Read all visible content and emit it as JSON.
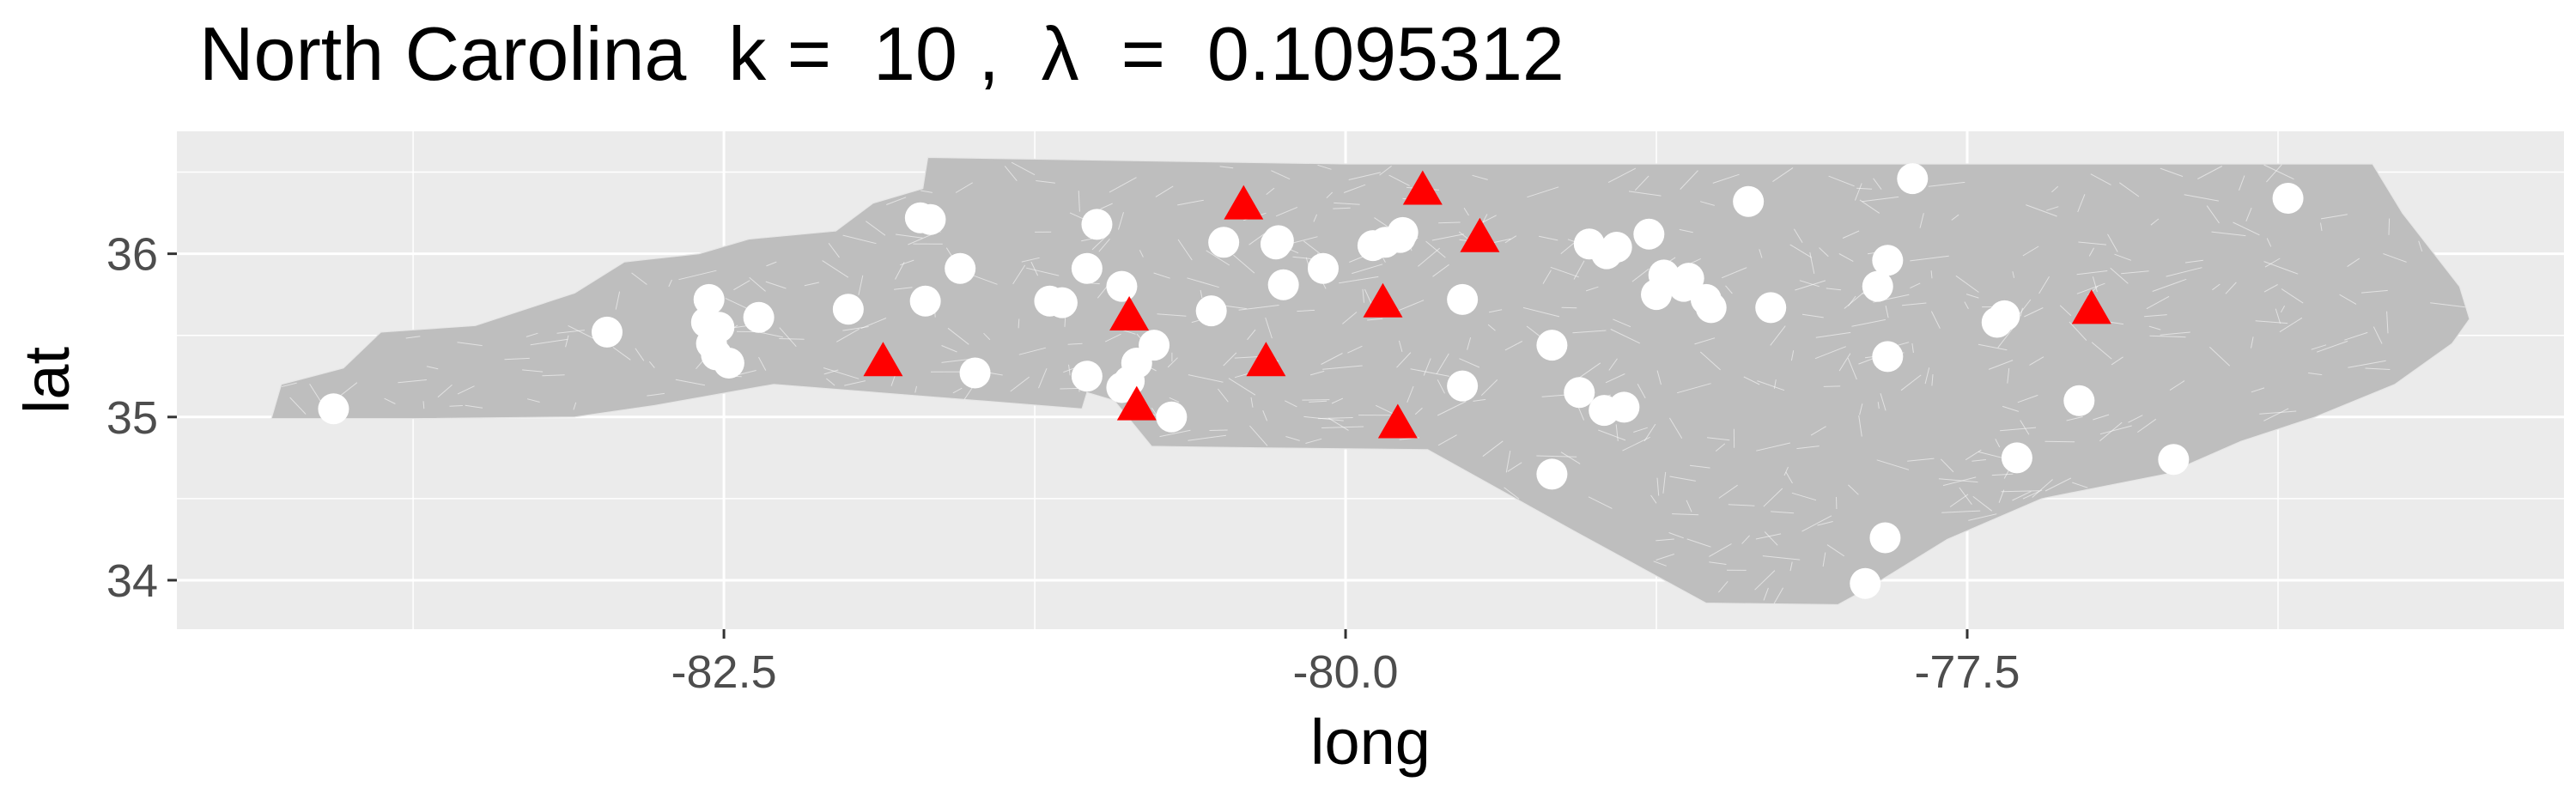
{
  "chart_data": {
    "type": "scatter",
    "title": "North Carolina  k =  10 ,  λ  =  0.1095312",
    "xlabel": "long",
    "ylabel": "lat",
    "xlim": [
      -84.7,
      -75.1
    ],
    "ylim": [
      33.7,
      36.75
    ],
    "x_ticks": [
      -82.5,
      -80.0,
      -77.5
    ],
    "x_tick_labels": [
      "-82.5",
      "-80.0",
      "-77.5"
    ],
    "y_ticks": [
      34,
      35,
      36
    ],
    "y_tick_labels": [
      "34",
      "35",
      "36"
    ],
    "grid": true,
    "legend": "none",
    "colors": {
      "panel": "#ebebeb",
      "grid": "#ffffff",
      "state_fill": "#bebebe",
      "boundary_lines": "#ffffff",
      "points": "#ffffff",
      "centers": "#ff0000"
    },
    "series": [
      {
        "marker": "circle",
        "color": "#ffffff",
        "x": [
          -84.07,
          -82.97,
          -82.57,
          -82.56,
          -82.52,
          -82.55,
          -82.53,
          -82.48,
          -82.36,
          -82.0,
          -81.67,
          -81.71,
          -81.69,
          -81.55,
          -81.49,
          -81.19,
          -81.14,
          -81.04,
          -81.04,
          -81.0,
          -80.9,
          -80.84,
          -80.87,
          -80.9,
          -80.77,
          -80.7,
          -80.54,
          -80.49,
          -80.28,
          -80.27,
          -80.25,
          -80.09,
          -79.89,
          -79.84,
          -79.78,
          -79.77,
          -79.53,
          -79.53,
          -79.17,
          -79.17,
          -79.06,
          -79.02,
          -78.96,
          -78.95,
          -78.91,
          -78.88,
          -78.75,
          -78.78,
          -78.72,
          -78.64,
          -78.62,
          -78.55,
          -78.53,
          -78.29,
          -78.38,
          -77.91,
          -77.83,
          -77.82,
          -77.82,
          -77.86,
          -77.72,
          -77.38,
          -77.35,
          -77.3,
          -77.05,
          -76.67,
          -76.21
        ],
        "y": [
          35.05,
          35.52,
          35.58,
          35.72,
          35.55,
          35.45,
          35.38,
          35.33,
          35.61,
          35.66,
          36.21,
          36.22,
          35.71,
          35.91,
          35.27,
          35.71,
          35.7,
          35.91,
          35.25,
          36.18,
          35.8,
          35.33,
          35.22,
          35.18,
          35.44,
          35.0,
          35.65,
          36.07,
          36.06,
          36.08,
          35.81,
          35.91,
          36.05,
          36.07,
          36.1,
          36.13,
          35.72,
          35.19,
          34.65,
          35.44,
          35.15,
          36.06,
          35.04,
          36.0,
          36.04,
          35.06,
          35.75,
          36.12,
          35.87,
          35.8,
          35.85,
          35.72,
          35.67,
          35.67,
          36.32,
          33.98,
          34.26,
          35.37,
          35.96,
          35.8,
          36.46,
          35.58,
          35.62,
          34.75,
          35.1,
          34.74,
          36.34
        ]
      },
      {
        "marker": "triangle",
        "color": "#ff0000",
        "x": [
          -81.86,
          -80.41,
          -79.69,
          -79.46,
          -80.87,
          -79.85,
          -80.32,
          -80.84,
          -79.79,
          -77.0
        ],
        "y": [
          35.33,
          36.29,
          36.38,
          36.09,
          35.61,
          35.69,
          35.33,
          35.06,
          34.95,
          35.65
        ]
      }
    ]
  }
}
